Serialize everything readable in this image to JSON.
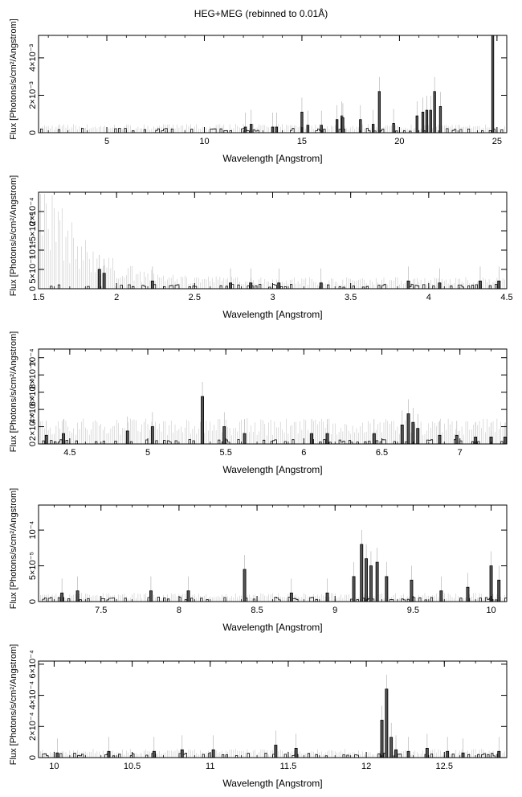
{
  "title": "HEG+MEG (rebinned to 0.01Å)",
  "chart_data": [
    {
      "type": "line",
      "xlabel": "Wavelength [Angstrom]",
      "ylabel": "Flux [Photons/s/cm²/Angstrom]",
      "xlim": [
        1.5,
        25.5
      ],
      "ylim": [
        0,
        0.0052
      ],
      "xticks": [
        5,
        10,
        15,
        20,
        25
      ],
      "xtick_labels": [
        "5",
        "10",
        "15",
        "20",
        "25"
      ],
      "yticks": [
        0,
        0.002,
        0.004
      ],
      "ytick_labels": [
        "0",
        "2×10⁻³",
        "4×10⁻³"
      ],
      "series": [
        {
          "x": [
            12.1,
            12.4,
            13.5,
            13.7,
            15.0,
            15.3,
            16.0,
            16.8,
            17.05,
            17.1,
            18.0,
            18.65,
            18.97,
            19.7,
            20.9,
            21.2,
            21.4,
            21.6,
            21.8,
            22.1,
            24.78
          ],
          "y": [
            0.0003,
            0.00045,
            0.0003,
            0.0003,
            0.0011,
            0.0004,
            0.0004,
            0.0007,
            0.0009,
            0.0008,
            0.0007,
            0.00045,
            0.0022,
            0.0005,
            0.0009,
            0.0011,
            0.0012,
            0.0012,
            0.0022,
            0.0014,
            0.0052
          ]
        }
      ]
    },
    {
      "type": "line",
      "xlabel": "Wavelength [Angstrom]",
      "ylabel": "Flux [Photons/s/cm²/Angstrom]",
      "xlim": [
        1.5,
        4.5
      ],
      "ylim": [
        0,
        0.00025
      ],
      "xticks": [
        1.5,
        2,
        2.5,
        3,
        3.5,
        4,
        4.5
      ],
      "xtick_labels": [
        "1.5",
        "2",
        "2.5",
        "3",
        "3.5",
        "4",
        "4.5"
      ],
      "yticks": [
        0,
        5e-05,
        0.0001,
        0.00015,
        0.0002
      ],
      "ytick_labels": [
        "0",
        "5×10⁻⁵",
        "10⁻⁴",
        "1.5×10⁻⁴",
        "2×10⁻⁴"
      ],
      "series": [
        {
          "x": [
            1.89,
            1.92,
            2.23,
            2.73,
            2.86,
            3.04,
            3.31,
            3.87,
            4.07,
            4.33,
            4.45
          ],
          "y": [
            5e-05,
            4e-05,
            2e-05,
            1.5e-05,
            1.5e-05,
            1.5e-05,
            1.5e-05,
            2e-05,
            1.5e-05,
            2e-05,
            2e-05
          ]
        }
      ]
    },
    {
      "type": "line",
      "xlabel": "Wavelength [Angstrom]",
      "ylabel": "Flux [Photons/s/cm²/Angstrom]",
      "xlim": [
        4.3,
        7.3
      ],
      "ylim": [
        0,
        0.00011
      ],
      "xticks": [
        4.5,
        5,
        5.5,
        6,
        6.5,
        7
      ],
      "xtick_labels": [
        "4.5",
        "5",
        "5.5",
        "6",
        "6.5",
        "7"
      ],
      "yticks": [
        0,
        2e-05,
        4e-05,
        6e-05,
        8e-05,
        0.0001
      ],
      "ytick_labels": [
        "0",
        "2×10⁻⁵",
        "4×10⁻⁵",
        "6×10⁻⁵",
        "8×10⁻⁵",
        "10⁻⁴"
      ],
      "series": [
        {
          "x": [
            4.35,
            4.46,
            4.87,
            5.03,
            5.35,
            5.49,
            5.62,
            6.05,
            6.15,
            6.45,
            6.63,
            6.67,
            6.7,
            6.73,
            6.87,
            6.98,
            7.1,
            7.2,
            7.29
          ],
          "y": [
            1e-05,
            1.2e-05,
            1.5e-05,
            2e-05,
            5.5e-05,
            2e-05,
            1.2e-05,
            1.2e-05,
            1.2e-05,
            1.2e-05,
            2.2e-05,
            3.5e-05,
            2.5e-05,
            1.8e-05,
            1e-05,
            1e-05,
            8e-06,
            8e-06,
            8e-06
          ]
        }
      ]
    },
    {
      "type": "line",
      "xlabel": "Wavelength [Angstrom]",
      "ylabel": "Flux [Photons/s/cm²/Angstrom]",
      "xlim": [
        7.1,
        10.1
      ],
      "ylim": [
        0,
        0.000135
      ],
      "xticks": [
        7.5,
        8,
        8.5,
        9,
        9.5,
        10
      ],
      "xtick_labels": [
        "7.5",
        "8",
        "8.5",
        "9",
        "9.5",
        "10"
      ],
      "yticks": [
        0,
        5e-05,
        0.0001
      ],
      "ytick_labels": [
        "0",
        "5×10⁻⁵",
        "10⁻⁴"
      ],
      "series": [
        {
          "x": [
            7.25,
            7.35,
            7.82,
            8.06,
            8.42,
            8.72,
            8.95,
            9.12,
            9.17,
            9.2,
            9.23,
            9.27,
            9.33,
            9.49,
            9.68,
            9.85,
            10.0,
            10.05
          ],
          "y": [
            1.2e-05,
            1.5e-05,
            1.5e-05,
            1.5e-05,
            4.5e-05,
            1.2e-05,
            1.2e-05,
            3.5e-05,
            8e-05,
            6e-05,
            5e-05,
            5.5e-05,
            3.5e-05,
            3e-05,
            1.5e-05,
            2e-05,
            5e-05,
            3e-05
          ]
        }
      ]
    },
    {
      "type": "line",
      "xlabel": "Wavelength [Angstrom]",
      "ylabel": "Flux [Photons/s/cm²/Angstrom]",
      "xlim": [
        9.9,
        12.9
      ],
      "ylim": [
        0,
        0.00062
      ],
      "xticks": [
        10,
        10.5,
        11,
        11.5,
        12,
        12.5
      ],
      "xtick_labels": [
        "10",
        "10.5",
        "11",
        "11.5",
        "12",
        "12.5"
      ],
      "yticks": [
        0,
        0.0002,
        0.0004,
        0.0006
      ],
      "ytick_labels": [
        "0",
        "2×10⁻⁴",
        "4×10⁻⁴",
        "6×10⁻⁴"
      ],
      "series": [
        {
          "x": [
            10.02,
            10.35,
            10.64,
            10.82,
            11.02,
            11.42,
            11.55,
            12.1,
            12.13,
            12.16,
            12.19,
            12.27,
            12.39,
            12.52,
            12.62,
            12.85
          ],
          "y": [
            3e-05,
            4e-05,
            4e-05,
            5e-05,
            5e-05,
            8e-05,
            6e-05,
            0.00024,
            0.00044,
            0.00013,
            5e-05,
            4e-05,
            6e-05,
            4e-05,
            3e-05,
            4e-05
          ]
        }
      ]
    }
  ]
}
